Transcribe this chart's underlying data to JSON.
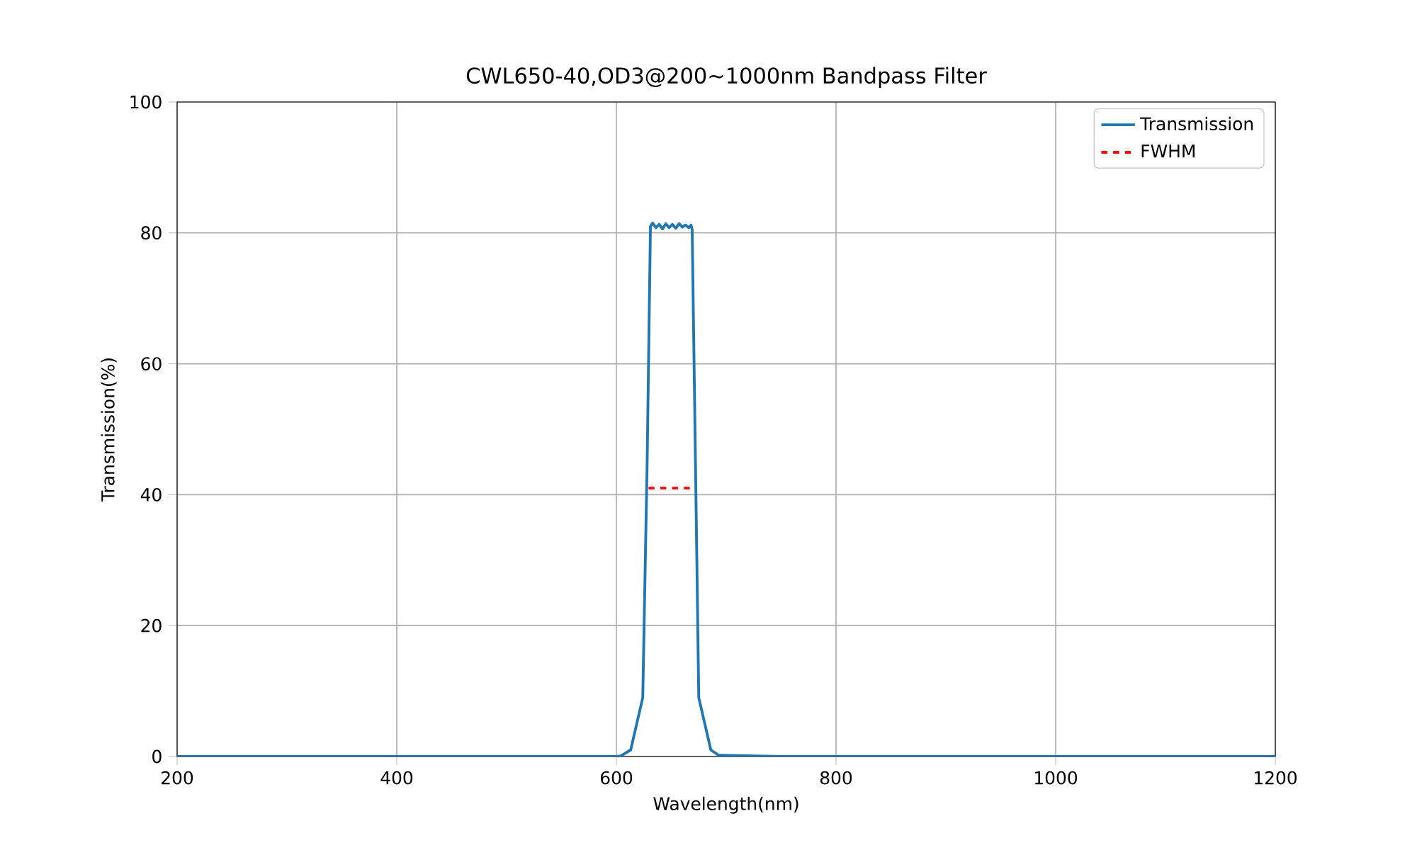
{
  "chart_data": {
    "type": "line",
    "title": "CWL650-40,OD3@200~1000nm Bandpass Filter",
    "xlabel": "Wavelength(nm)",
    "ylabel": "Transmission(%)",
    "series": [
      {
        "name": "Transmission",
        "color": "#1f77b4",
        "x": [
          200,
          400,
          600,
          604,
          613,
          624,
          628,
          631,
          633,
          636,
          639,
          642,
          645,
          648,
          651,
          654,
          657,
          660,
          663,
          666,
          668,
          669,
          672,
          675,
          686,
          693,
          750,
          1000,
          1200
        ],
        "values": [
          0,
          0,
          0,
          0.1,
          1,
          9,
          45,
          81,
          81.5,
          80.8,
          81.3,
          80.6,
          81.4,
          80.8,
          81.3,
          80.7,
          81.4,
          80.9,
          81.2,
          80.8,
          81.2,
          80.5,
          45,
          9,
          1,
          0.2,
          0,
          0,
          0
        ]
      },
      {
        "name": "FWHM",
        "color": "#ff0000",
        "line_style": "dashed",
        "x": [
          629.3,
          669
        ],
        "values": [
          41,
          41
        ]
      }
    ],
    "xlim": [
      200,
      1200
    ],
    "ylim": [
      0,
      100
    ],
    "xticks": [
      200,
      400,
      600,
      800,
      1000,
      1200
    ],
    "yticks": [
      0,
      20,
      40,
      60,
      80,
      100
    ],
    "grid": true,
    "legend": "top right"
  }
}
